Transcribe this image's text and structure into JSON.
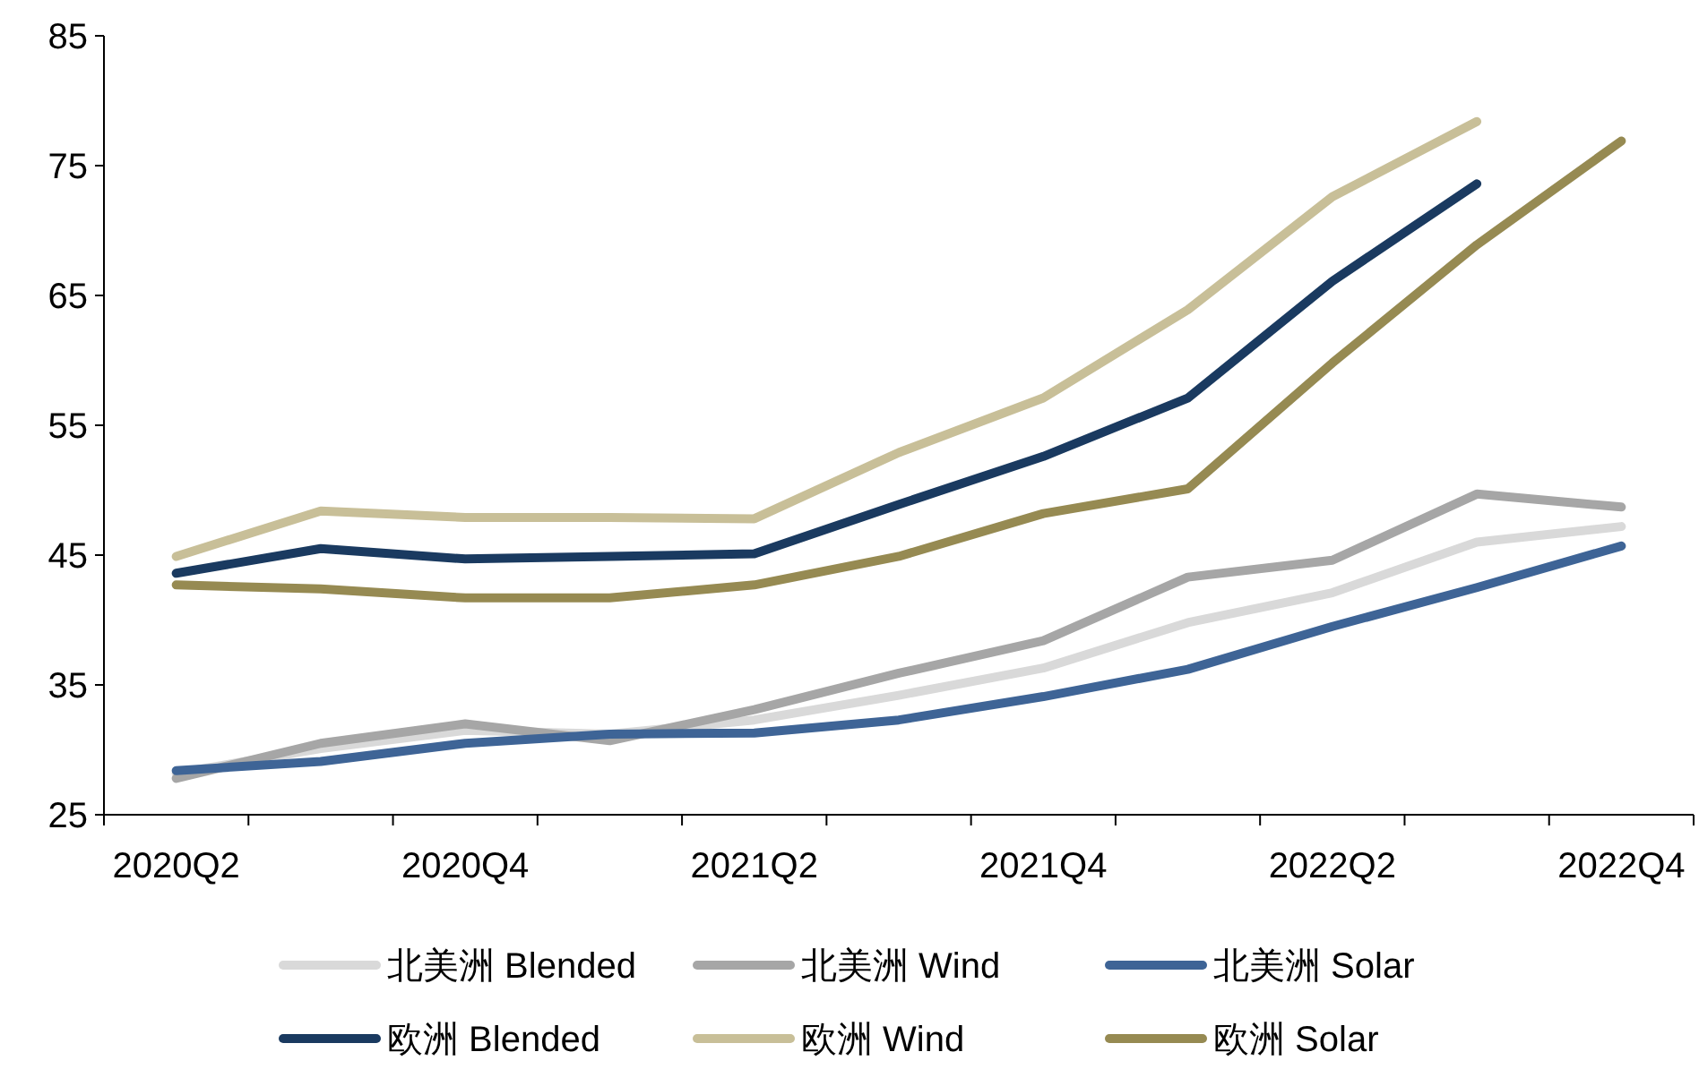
{
  "chart_data": {
    "type": "line",
    "categories": [
      "2020Q2",
      null,
      "2020Q4",
      null,
      "2021Q2",
      null,
      "2021Q4",
      null,
      "2022Q2",
      null,
      "2022Q4"
    ],
    "ylim": [
      25,
      85
    ],
    "yticks": [
      25,
      35,
      45,
      55,
      65,
      75,
      85
    ],
    "grid": false,
    "legend": "bottom",
    "marker": "none",
    "series": [
      {
        "name": "北美洲 Blended",
        "color": "#d9d9d9",
        "values": [
          28.2,
          30.1,
          31.5,
          31.2,
          32.3,
          34.2,
          36.3,
          39.8,
          42.1,
          46.0,
          47.2
        ]
      },
      {
        "name": "北美洲 Wind",
        "color": "#a6a6a6",
        "values": [
          27.8,
          30.5,
          32.0,
          30.7,
          33.1,
          35.9,
          38.4,
          43.3,
          44.6,
          49.7,
          48.7
        ]
      },
      {
        "name": "北美洲 Solar",
        "color": "#3e6496",
        "values": [
          28.4,
          29.1,
          30.5,
          31.2,
          31.3,
          32.3,
          34.1,
          36.2,
          39.5,
          42.5,
          45.7
        ]
      },
      {
        "name": "欧洲 Blended",
        "color": "#1a3a60",
        "values": [
          43.6,
          45.5,
          44.7,
          44.9,
          45.1,
          48.9,
          52.6,
          57.1,
          66.1,
          73.6,
          null
        ]
      },
      {
        "name": "欧洲 Wind",
        "color": "#c8bf98",
        "values": [
          44.9,
          48.4,
          47.9,
          47.9,
          47.8,
          52.9,
          57.1,
          63.9,
          72.6,
          78.4,
          null
        ]
      },
      {
        "name": "欧洲 Solar",
        "color": "#968a52",
        "values": [
          42.7,
          42.4,
          41.7,
          41.7,
          42.7,
          44.9,
          48.2,
          50.1,
          59.8,
          68.9,
          76.9
        ]
      }
    ]
  }
}
